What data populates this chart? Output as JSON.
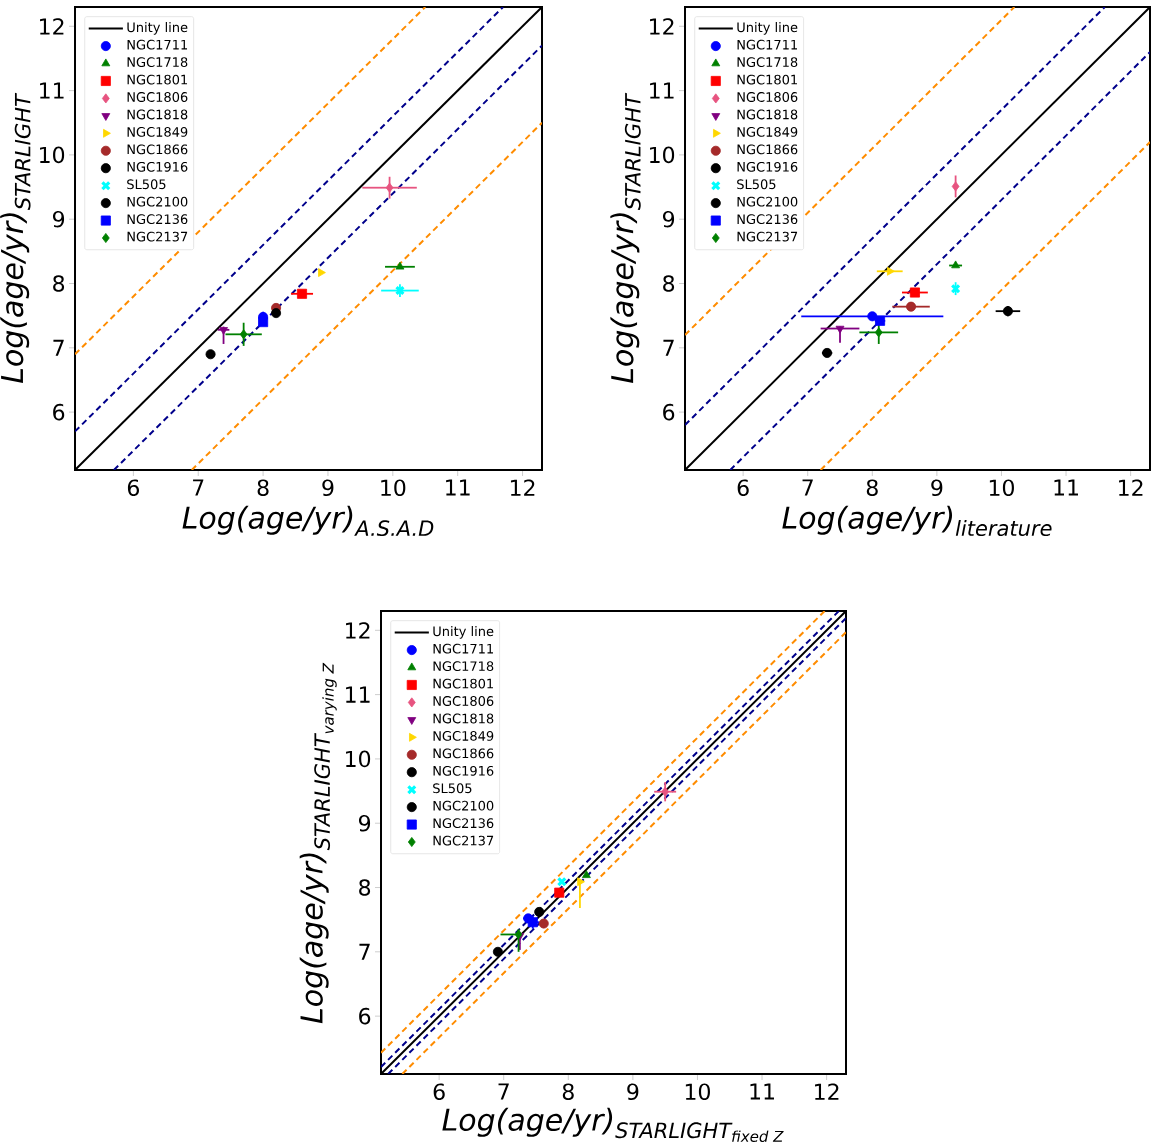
{
  "chart_data": [
    {
      "type": "scatter",
      "xlabel": "\\textit{Log(age/yr)}_{\\textit{A.S.A.D}}",
      "ylabel": "\\textit{Log(age/yr)}_{\\textit{STARLIGHT}}",
      "xlim": [
        5.1,
        12.3
      ],
      "ylim": [
        5.1,
        12.3
      ],
      "xticks": [
        6,
        7,
        8,
        9,
        10,
        11,
        12
      ],
      "yticks": [
        6,
        7,
        8,
        9,
        10,
        11,
        12
      ],
      "legend": "top left",
      "series": [
        {
          "type": "line",
          "name": "Unity line",
          "color": "#000000",
          "line_style": "solid",
          "x": [
            5.1,
            12.3
          ],
          "values": [
            5.1,
            12.3
          ]
        },
        {
          "type": "line",
          "color": "#00008b",
          "line_style": "dashed",
          "x": [
            5.1,
            11.7
          ],
          "values": [
            5.7,
            12.3
          ]
        },
        {
          "type": "line",
          "color": "#00008b",
          "line_style": "dashed",
          "x": [
            5.7,
            12.3
          ],
          "values": [
            5.1,
            11.7
          ]
        },
        {
          "type": "line",
          "color": "#ff8c00",
          "line_style": "dashed",
          "x": [
            5.1,
            10.5
          ],
          "values": [
            6.9,
            12.3
          ]
        },
        {
          "type": "line",
          "color": "#ff8c00",
          "line_style": "dashed",
          "x": [
            6.9,
            12.3
          ],
          "values": [
            5.1,
            10.5
          ]
        },
        {
          "name": "NGC1711",
          "color": "#0000ff",
          "marker": "circle",
          "x": [
            8.0
          ],
          "values": [
            7.48
          ],
          "errors": [
            0.08
          ]
        },
        {
          "name": "NGC1718",
          "color": "#008000",
          "marker": "triangle",
          "x": [
            10.11
          ],
          "values": [
            8.26
          ],
          "xerrors": [
            0.23
          ]
        },
        {
          "name": "NGC1801",
          "color": "#ff0000",
          "marker": "square",
          "x": [
            8.6
          ],
          "values": [
            7.84
          ],
          "xerrors": [
            0.17
          ]
        },
        {
          "name": "NGC1806",
          "color": "#e75480",
          "marker": "diamond",
          "x": [
            9.95
          ],
          "values": [
            9.49
          ],
          "errors": [
            0.17
          ],
          "xerrors": [
            0.42
          ]
        },
        {
          "name": "NGC1818",
          "color": "#800080",
          "marker": "triangle-down",
          "x": [
            7.39
          ],
          "values": [
            7.28
          ],
          "errors": [
            [
              7.06,
              7.33
            ]
          ],
          "xerrors": [
            0.09
          ]
        },
        {
          "name": "NGC1849",
          "color": "#ffd700",
          "marker": "triangle-right",
          "x": [
            8.89
          ],
          "values": [
            8.17
          ]
        },
        {
          "name": "NGC1866",
          "color": "#a52a2a",
          "x": [
            8.2
          ],
          "values": [
            7.62
          ]
        },
        {
          "name": "NGC1916",
          "color": "#000000",
          "x": [
            8.2
          ],
          "values": [
            7.54
          ],
          "errors": [
            0.06
          ]
        },
        {
          "name": "SL505",
          "color": "#00ffff",
          "marker": "cross",
          "x": [
            10.11
          ],
          "values": [
            7.89
          ],
          "errors": [
            0.1
          ],
          "xerrors": [
            0.29
          ]
        },
        {
          "name": "NGC2100",
          "color": "#000000",
          "marker": "circle",
          "x": [
            7.19
          ],
          "values": [
            6.9
          ],
          "xerrors": [
            0.05
          ]
        },
        {
          "name": "NGC2136",
          "color": "#0000ff",
          "marker": "square",
          "x": [
            8.0
          ],
          "values": [
            7.4
          ]
        },
        {
          "name": "NGC2137",
          "color": "#008000",
          "marker": "diamond",
          "x": [
            7.7
          ],
          "values": [
            7.21
          ],
          "errors": [
            0.18
          ],
          "xerrors": [
            0.28
          ]
        }
      ]
    },
    {
      "type": "scatter",
      "xlabel": "\\textit{Log(age/yr)}_{\\textit{literature}}",
      "ylabel": "\\textit{Log(age/yr)}_{\\textit{STARLIGHT}}",
      "xlim": [
        5.1,
        12.3
      ],
      "ylim": [
        5.1,
        12.3
      ],
      "xticks": [
        6,
        7,
        8,
        9,
        10,
        11,
        12
      ],
      "yticks": [
        6,
        7,
        8,
        9,
        10,
        11,
        12
      ],
      "legend": "top left",
      "series": [
        {
          "type": "line",
          "name": "Unity line",
          "color": "#000000",
          "line_style": "solid",
          "x": [
            5.1,
            12.3
          ],
          "values": [
            5.1,
            12.3
          ]
        },
        {
          "type": "line",
          "color": "#00008b",
          "line_style": "dashed",
          "x": [
            5.1,
            11.6
          ],
          "values": [
            5.8,
            12.3
          ]
        },
        {
          "type": "line",
          "color": "#00008b",
          "line_style": "dashed",
          "x": [
            5.8,
            12.3
          ],
          "values": [
            5.1,
            11.6
          ]
        },
        {
          "type": "line",
          "color": "#ff8c00",
          "line_style": "dashed",
          "x": [
            5.1,
            10.2
          ],
          "values": [
            7.2,
            12.3
          ]
        },
        {
          "type": "line",
          "color": "#ff8c00",
          "line_style": "dashed",
          "x": [
            7.2,
            12.3
          ],
          "values": [
            5.1,
            10.2
          ]
        },
        {
          "name": "NGC1711",
          "color": "#0000ff",
          "marker": "circle",
          "x": [
            8.0
          ],
          "values": [
            7.49
          ],
          "xerrors": [
            1.1
          ]
        },
        {
          "name": "NGC1718",
          "color": "#008000",
          "marker": "triangle",
          "x": [
            9.29
          ],
          "values": [
            8.28
          ],
          "xerrors": [
            0.1
          ]
        },
        {
          "name": "NGC1801",
          "color": "#ff0000",
          "marker": "square",
          "x": [
            8.66
          ],
          "values": [
            7.86
          ],
          "xerrors": [
            0.2
          ]
        },
        {
          "name": "NGC1806",
          "color": "#e75480",
          "marker": "diamond",
          "x": [
            9.29
          ],
          "values": [
            9.51
          ],
          "errors": [
            0.17
          ]
        },
        {
          "name": "NGC1818",
          "color": "#800080",
          "marker": "triangle-down",
          "x": [
            7.5
          ],
          "values": [
            7.3
          ],
          "errors": [
            [
              7.08,
              7.33
            ]
          ],
          "xerrors": [
            0.3
          ]
        },
        {
          "name": "NGC1849",
          "color": "#ffd700",
          "marker": "triangle-right",
          "x": [
            8.27
          ],
          "values": [
            8.19
          ],
          "xerrors": [
            0.2
          ]
        },
        {
          "name": "NGC1866",
          "color": "#a52a2a",
          "x": [
            8.6
          ],
          "values": [
            7.64
          ],
          "xerrors": [
            0.29
          ]
        },
        {
          "name": "NGC1916",
          "color": "#000000",
          "x": [
            10.1
          ],
          "values": [
            7.57
          ],
          "errors": [
            0.08
          ],
          "xerrors": [
            0.19
          ]
        },
        {
          "name": "SL505",
          "color": "#00ffff",
          "marker": "cross",
          "x": [
            9.29
          ],
          "values": [
            7.92
          ],
          "errors": [
            0.1
          ]
        },
        {
          "name": "NGC2100",
          "color": "#000000",
          "marker": "circle",
          "x": [
            7.3
          ],
          "values": [
            6.92
          ],
          "xerrors": [
            0.08
          ]
        },
        {
          "name": "NGC2136",
          "color": "#0000ff",
          "marker": "square",
          "x": [
            8.12
          ],
          "values": [
            7.42
          ],
          "xerrors": [
            0.08
          ]
        },
        {
          "name": "NGC2137",
          "color": "#008000",
          "marker": "diamond",
          "x": [
            8.1
          ],
          "values": [
            7.24
          ],
          "errors": [
            0.18
          ],
          "xerrors": [
            0.3
          ]
        }
      ]
    },
    {
      "type": "scatter",
      "xlabel": "\\textit{Log(age/yr)}_{\\textit{STARLIGHT}_{\\textit{fixed Z}}}",
      "ylabel": "\\textit{Log(age/yr)}_{\\textit{STARLIGHT}_{\\textit{varying Z}}}",
      "xlim": [
        5.1,
        12.3
      ],
      "ylim": [
        5.1,
        12.3
      ],
      "xticks": [
        6,
        7,
        8,
        9,
        10,
        11,
        12
      ],
      "yticks": [
        6,
        7,
        8,
        9,
        10,
        11,
        12
      ],
      "legend": "top left",
      "series": [
        {
          "type": "line",
          "name": "Unity line",
          "color": "#000000",
          "line_style": "solid",
          "x": [
            5.1,
            12.3
          ],
          "values": [
            5.1,
            12.3
          ]
        },
        {
          "type": "line",
          "color": "#00008b",
          "line_style": "dashed",
          "x": [
            5.1,
            12.19
          ],
          "values": [
            5.21,
            12.3
          ]
        },
        {
          "type": "line",
          "color": "#00008b",
          "line_style": "dashed",
          "x": [
            5.21,
            12.3
          ],
          "values": [
            5.1,
            12.19
          ]
        },
        {
          "type": "line",
          "color": "#ff8c00",
          "line_style": "dashed",
          "x": [
            5.1,
            11.97
          ],
          "values": [
            5.43,
            12.3
          ]
        },
        {
          "type": "line",
          "color": "#ff8c00",
          "line_style": "dashed",
          "x": [
            5.43,
            12.3
          ],
          "values": [
            5.1,
            11.97
          ]
        },
        {
          "name": "NGC1711",
          "color": "#0000ff",
          "marker": "circle",
          "x": [
            7.38
          ],
          "values": [
            7.52
          ],
          "xerrors": [
            0.08
          ]
        },
        {
          "name": "NGC1718",
          "color": "#008000",
          "marker": "triangle",
          "x": [
            8.28
          ],
          "values": [
            8.19
          ]
        },
        {
          "name": "NGC1801",
          "color": "#ff0000",
          "marker": "square",
          "x": [
            7.86
          ],
          "values": [
            7.92
          ]
        },
        {
          "name": "NGC1806",
          "color": "#e75480",
          "marker": "diamond",
          "x": [
            9.5
          ],
          "values": [
            9.49
          ],
          "errors": [
            0.15
          ],
          "xerrors": [
            0.17
          ]
        },
        {
          "name": "NGC1818",
          "color": "#800080",
          "marker": "triangle-down",
          "x": [
            7.25
          ],
          "values": [
            7.25
          ],
          "errors": [
            [
              7.03,
              7.3
            ]
          ]
        },
        {
          "name": "NGC1849",
          "color": "#ffd700",
          "marker": "triangle-right",
          "x": [
            8.18
          ],
          "values": [
            8.09
          ],
          "errors": [
            [
              7.68,
              8.12
            ]
          ]
        },
        {
          "name": "NGC1866",
          "color": "#a52a2a",
          "x": [
            7.62
          ],
          "values": [
            7.44
          ]
        },
        {
          "name": "NGC1916",
          "color": "#000000",
          "x": [
            7.55
          ],
          "values": [
            7.62
          ]
        },
        {
          "name": "SL505",
          "color": "#00ffff",
          "marker": "cross",
          "x": [
            7.9
          ],
          "values": [
            8.09
          ]
        },
        {
          "name": "NGC2100",
          "color": "#000000",
          "marker": "circle",
          "x": [
            6.91
          ],
          "values": [
            7.0
          ]
        },
        {
          "name": "NGC2136",
          "color": "#0000ff",
          "marker": "square",
          "x": [
            7.45
          ],
          "values": [
            7.46
          ],
          "errors": [
            0.1
          ],
          "xerrors": [
            0.1
          ]
        },
        {
          "name": "NGC2137",
          "color": "#008000",
          "marker": "diamond",
          "x": [
            7.23
          ],
          "values": [
            7.27
          ],
          "errors": [
            [
              7.0,
              7.35
            ]
          ],
          "xerrors": [
            [
              6.95,
              7.3
            ]
          ]
        }
      ]
    }
  ]
}
